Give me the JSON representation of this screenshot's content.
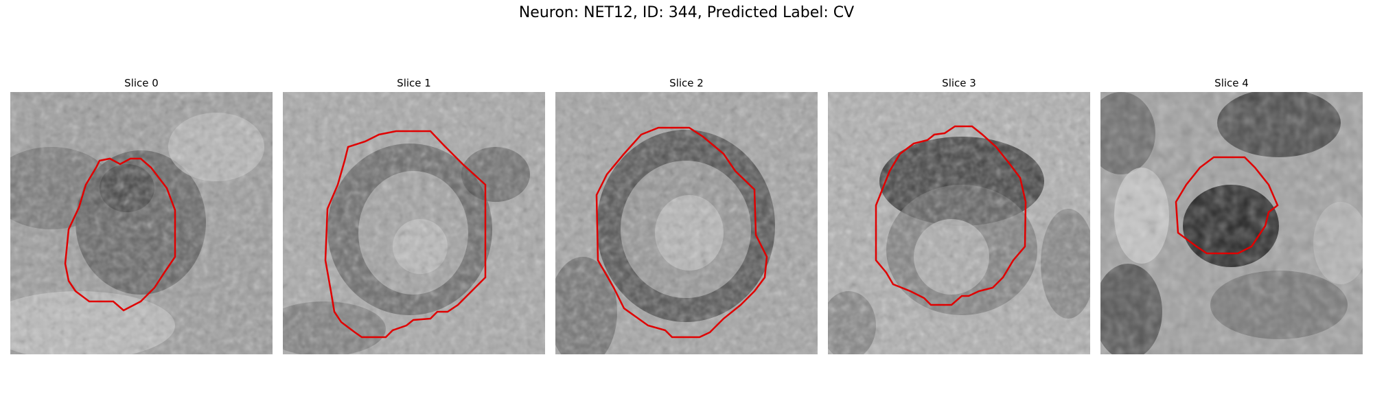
{
  "figure": {
    "title": "Neuron: NET12, ID: 344, Predicted Label: CV"
  },
  "colors": {
    "contour": "#e00000",
    "background": "#ffffff"
  },
  "panels": [
    {
      "title": "Slice 0"
    },
    {
      "title": "Slice 1"
    },
    {
      "title": "Slice 2"
    },
    {
      "title": "Slice 3"
    },
    {
      "title": "Slice 4"
    }
  ]
}
